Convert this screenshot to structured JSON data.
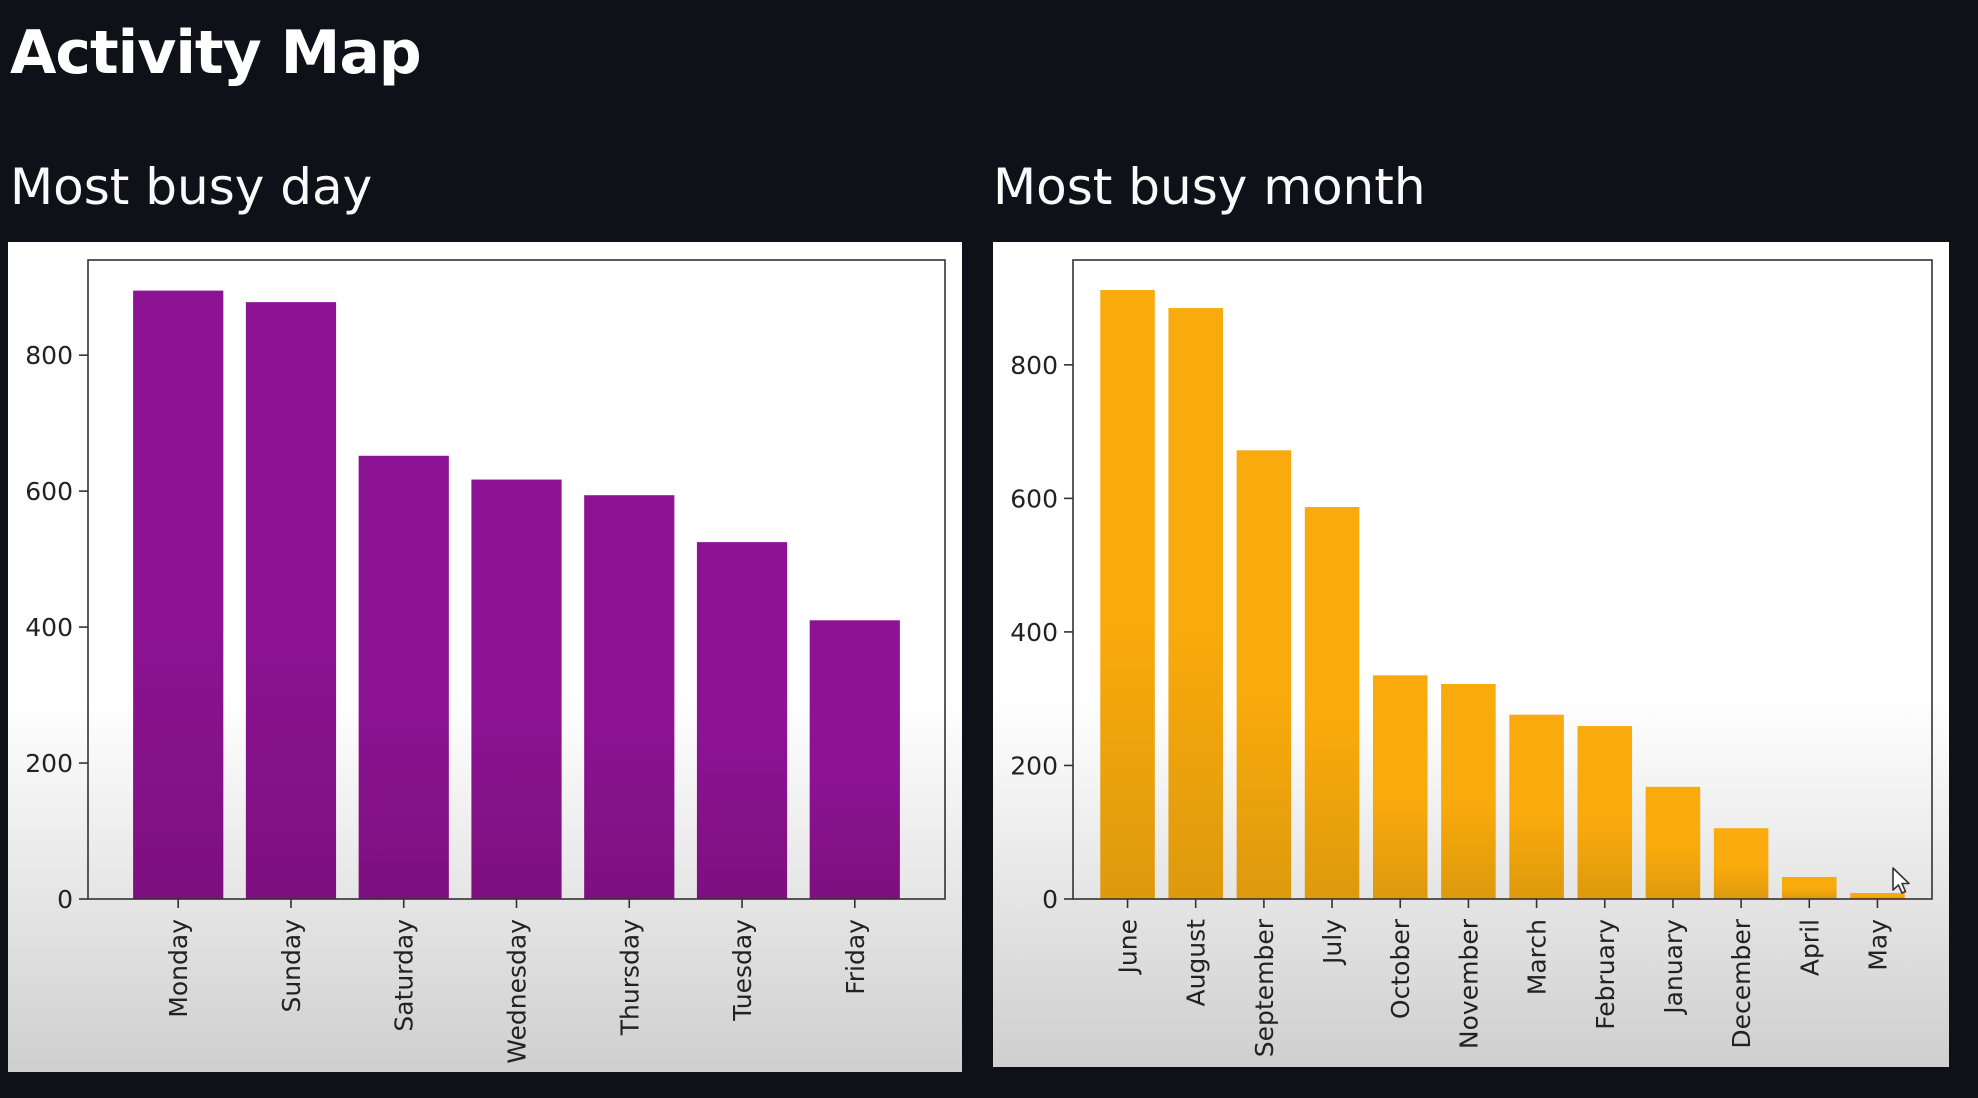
{
  "page": {
    "title": "Activity Map"
  },
  "sections": {
    "day_title": "Most busy day",
    "month_title": "Most busy month"
  },
  "chart_data": [
    {
      "type": "bar",
      "categories": [
        "Monday",
        "Sunday",
        "Saturday",
        "Wednesday",
        "Thursday",
        "Tuesday",
        "Friday"
      ],
      "values": [
        895,
        878,
        652,
        617,
        594,
        525,
        410
      ],
      "title": "",
      "xlabel": "",
      "ylabel": "",
      "ylim": [
        0,
        940
      ],
      "yticks": [
        0,
        200,
        400,
        600,
        800
      ],
      "grid": false,
      "legend": "none",
      "color": "#8c1393",
      "color_bottom": "#7d107f"
    },
    {
      "type": "bar",
      "categories": [
        "June",
        "August",
        "September",
        "July",
        "October",
        "November",
        "March",
        "February",
        "January",
        "December",
        "April",
        "May"
      ],
      "values": [
        912,
        885,
        672,
        587,
        335,
        322,
        276,
        259,
        168,
        106,
        33,
        9
      ],
      "title": "",
      "xlabel": "",
      "ylabel": "",
      "ylim": [
        0,
        957
      ],
      "yticks": [
        0,
        200,
        400,
        600,
        800
      ],
      "grid": false,
      "legend": "none",
      "color": "#f9aa0c",
      "color_bottom": "#dd9a0d"
    }
  ],
  "icons": {
    "cursor": "mouse-pointer-icon"
  }
}
